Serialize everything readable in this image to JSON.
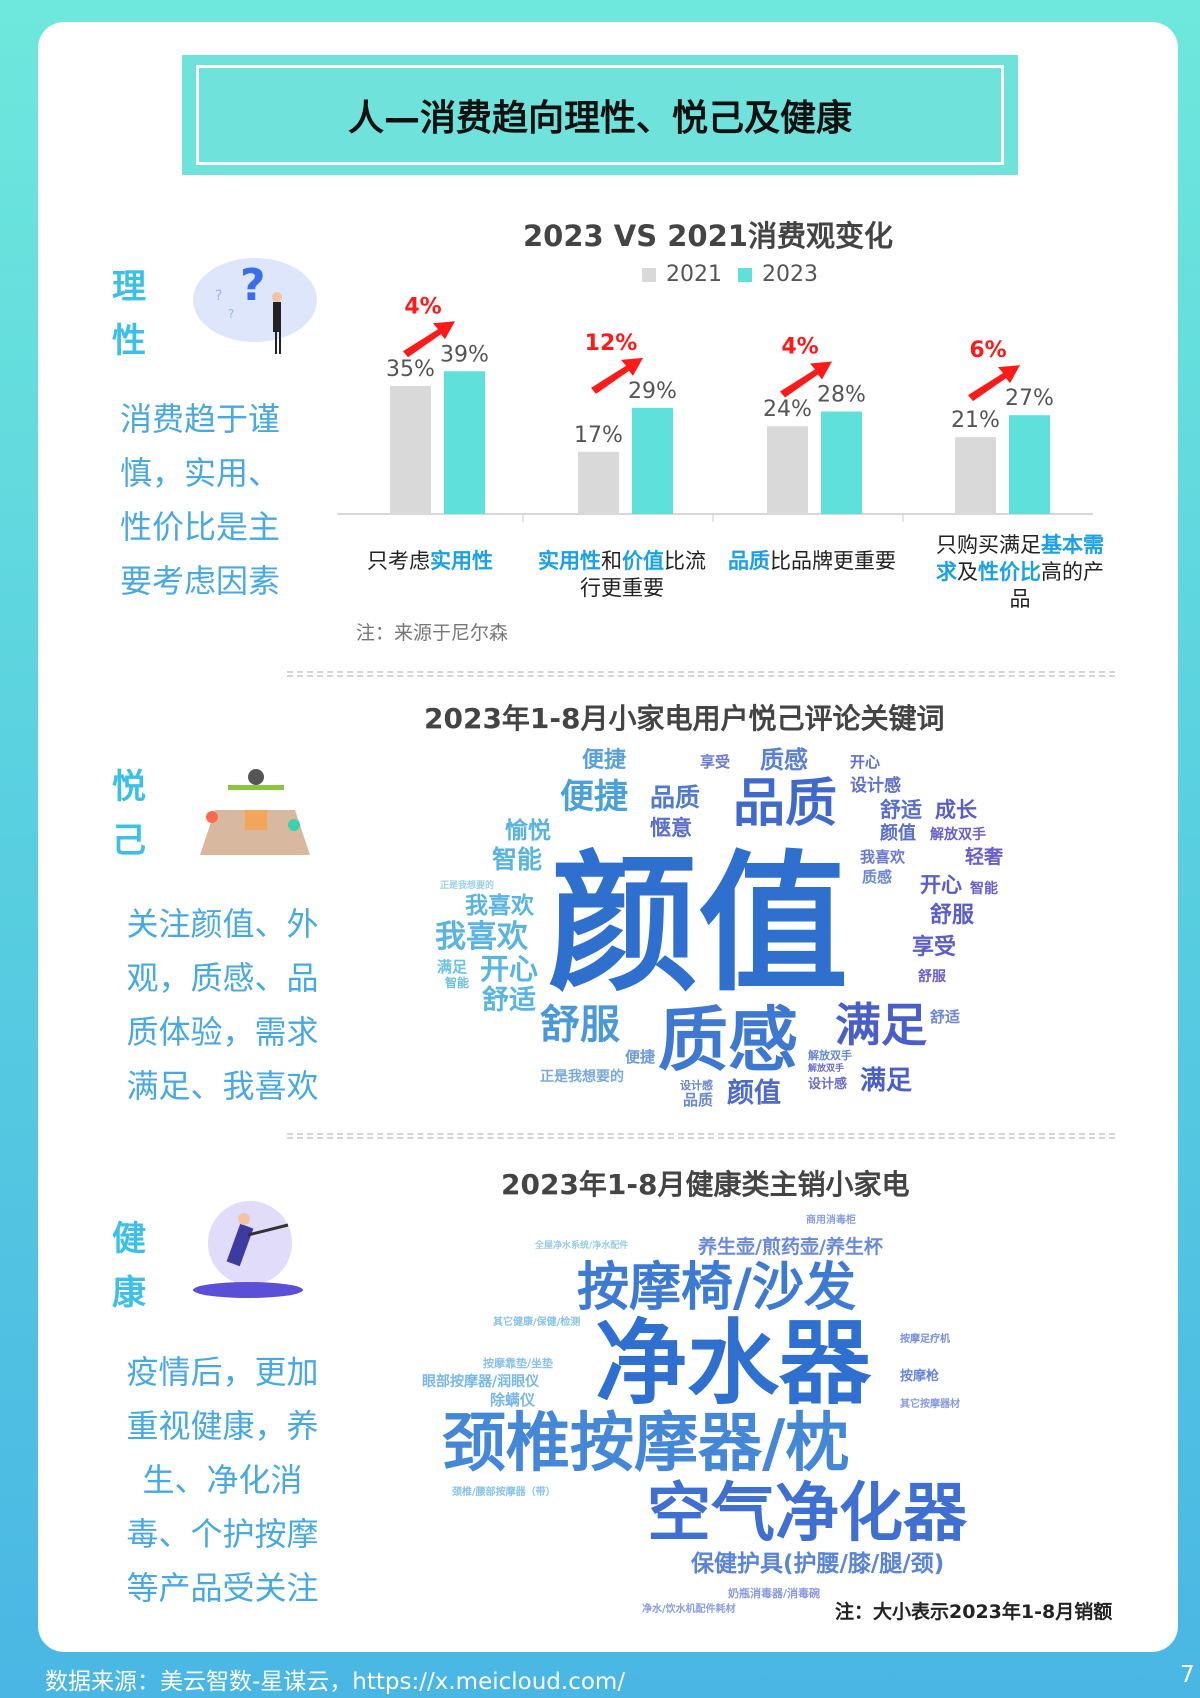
{
  "title": "人—消费趋向理性、悦己及健康",
  "sections": [
    {
      "heading": "理性",
      "desc": [
        "消费趋于谨",
        "慎，实用、",
        "性价比是主",
        "要考虑因素"
      ],
      "icon": "question-person-illustration"
    },
    {
      "heading": "悦己",
      "desc": [
        "关注颜值、外",
        "观，质感、品",
        "质体验，需求",
        "满足、我喜欢"
      ],
      "icon": "drone-delivery-illustration"
    },
    {
      "heading": "健康",
      "desc": [
        "疫情后，更加",
        "重视健康，养",
        "生、净化消",
        "毒、个护按摩",
        "等产品受关注"
      ],
      "icon": "exercise-person-illustration"
    }
  ],
  "chart_data": {
    "type": "bar",
    "title": "2023 VS 2021消费观变化",
    "categories": [
      [
        {
          "t": "只考虑"
        },
        {
          "t": "实用性",
          "hl": true
        }
      ],
      [
        {
          "t": "实用性",
          "hl": true
        },
        {
          "t": "和"
        },
        {
          "t": "价值",
          "hl": true
        },
        {
          "t": "比流行更重要"
        }
      ],
      [
        {
          "t": "品质",
          "hl": true
        },
        {
          "t": "比品牌更重要"
        }
      ],
      [
        {
          "t": "只购买满足"
        },
        {
          "t": "基本需求",
          "hl": true
        },
        {
          "t": "及"
        },
        {
          "t": "性价比",
          "hl": true
        },
        {
          "t": "高的产品"
        }
      ]
    ],
    "series": [
      {
        "name": "2021",
        "values": [
          35,
          17,
          24,
          21
        ],
        "color": "#d9d9d9"
      },
      {
        "name": "2023",
        "values": [
          39,
          29,
          28,
          27
        ],
        "color": "#5fe0da"
      }
    ],
    "value_labels": {
      "2021": [
        "35%",
        "17%",
        "24%",
        "21%"
      ],
      "2023": [
        "39%",
        "29%",
        "28%",
        "27%"
      ]
    },
    "change_labels": [
      "4%",
      "12%",
      "4%",
      "6%"
    ],
    "change_color": "#ff1a1a",
    "legend_position": "top",
    "grid": false,
    "note": "注：来源于尼尔森"
  },
  "cloud1": {
    "title": "2023年1-8月小家电用户悦己评论关键词",
    "words": [
      "颜值",
      "质感",
      "满足",
      "品质",
      "便捷",
      "舒服",
      "我喜欢",
      "开心",
      "舒适",
      "质感",
      "便捷",
      "享受",
      "品质",
      "开心",
      "设计感",
      "惬意",
      "颜值",
      "舒适",
      "成长",
      "愉悦",
      "智能",
      "解放双手",
      "轻奢",
      "我喜欢",
      "我喜欢",
      "开心",
      "智能",
      "舒服",
      "享受",
      "满足",
      "智能",
      "质感",
      "舒服",
      "便捷",
      "解放双手",
      "舒适",
      "正是我想要的",
      "解放双手",
      "设计感",
      "满足",
      "设计感",
      "颜值",
      "品质",
      "正是我想要的"
    ]
  },
  "cloud2": {
    "title": "2023年1-8月健康类主销小家电",
    "words": [
      "净水器",
      "按摩椅/沙发",
      "颈椎按摩器/枕",
      "空气净化器",
      "保健护具(护腰/膝/腿/颈)",
      "养生壶/煎药壶/养生杯",
      "商用消毒柜",
      "奶瓶消毒器/消毒碗",
      "净水/饮水机配件耗材",
      "眼部按摩器/润眼仪",
      "除螨仪",
      "按摩靠垫/坐垫",
      "其它健康/保健/检测",
      "按摩枪",
      "按摩足疗机",
      "颈椎/腰部按摩器（带）",
      "全屋净水系统/净水配件",
      "其它按摩器材"
    ],
    "note": "注：大小表示2023年1-8月销额"
  },
  "footer": {
    "source": "数据来源：美云智数-星谋云，https://x.meicloud.com/",
    "page": "7"
  }
}
